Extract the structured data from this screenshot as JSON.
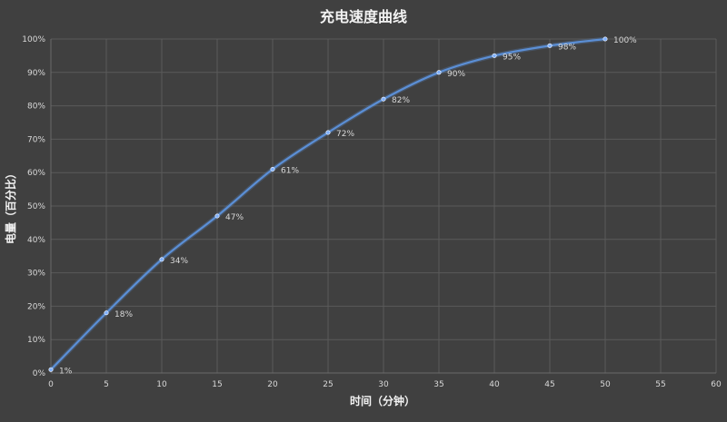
{
  "chart_data": {
    "type": "line",
    "title": "充电速度曲线",
    "xlabel": "时间（分钟）",
    "ylabel": "电量（百分比）",
    "xlim": [
      0,
      60
    ],
    "ylim": [
      0,
      100
    ],
    "x_ticks": [
      "0",
      "5",
      "10",
      "15",
      "20",
      "25",
      "30",
      "35",
      "40",
      "45",
      "50",
      "55",
      "60"
    ],
    "y_ticks": [
      "0%",
      "10%",
      "20%",
      "30%",
      "40%",
      "50%",
      "60%",
      "70%",
      "80%",
      "90%",
      "100%"
    ],
    "grid": true,
    "smooth": true,
    "series": [
      {
        "x": [
          0,
          5,
          10,
          15,
          20,
          25,
          30,
          35,
          40,
          45,
          50
        ],
        "y": [
          1,
          18,
          34,
          47,
          61,
          72,
          82,
          90,
          95,
          98,
          100
        ],
        "labels": [
          "1%",
          "18%",
          "34%",
          "47%",
          "61%",
          "72%",
          "82%",
          "90%",
          "95%",
          "98%",
          "100%"
        ]
      }
    ],
    "colors": {
      "line": "#5b8fd6",
      "point": "#7fb0ff",
      "background": "#404040"
    }
  }
}
